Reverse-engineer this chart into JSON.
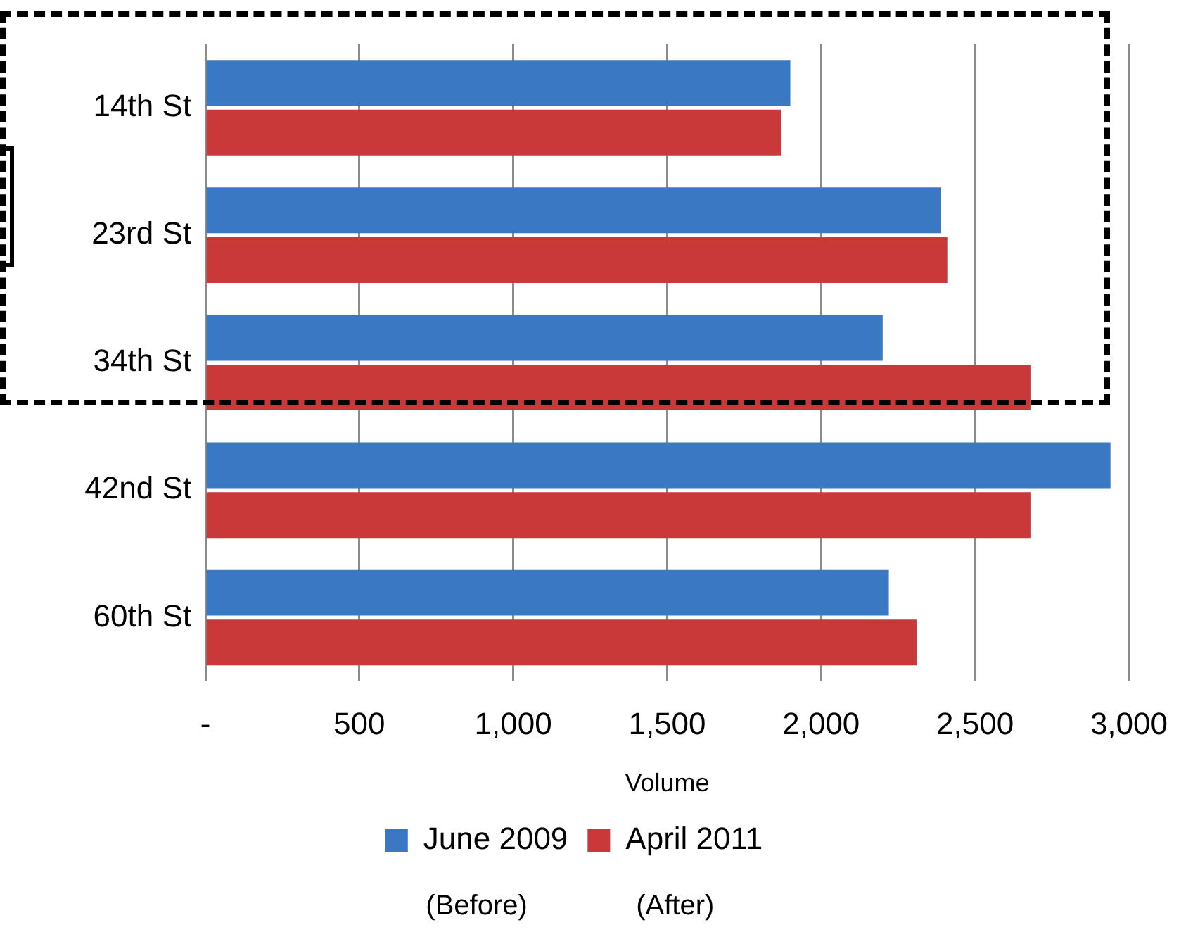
{
  "chart_data": {
    "type": "bar",
    "orientation": "horizontal",
    "xlabel": "Volume",
    "categories": [
      "14th St",
      "23rd St",
      "34th St",
      "42nd St",
      "60th St"
    ],
    "series": [
      {
        "name": "June 2009",
        "color": "#3a78c3",
        "values": [
          1900,
          2390,
          2200,
          2940,
          2220
        ]
      },
      {
        "name": "April 2011",
        "color": "#c9393a",
        "values": [
          1870,
          2410,
          2680,
          2680,
          2310
        ]
      }
    ],
    "xlim": [
      0,
      3000
    ],
    "xticks": [
      {
        "value": 0,
        "label": "-"
      },
      {
        "value": 500,
        "label": "500"
      },
      {
        "value": 1000,
        "label": "1,000"
      },
      {
        "value": 1500,
        "label": "1,500"
      },
      {
        "value": 2000,
        "label": "2,000"
      },
      {
        "value": 2500,
        "label": "2,500"
      },
      {
        "value": 3000,
        "label": "3,000"
      }
    ],
    "grid": "x",
    "legend": "bottom",
    "annotations": [
      "(Before)",
      "(After)"
    ]
  }
}
